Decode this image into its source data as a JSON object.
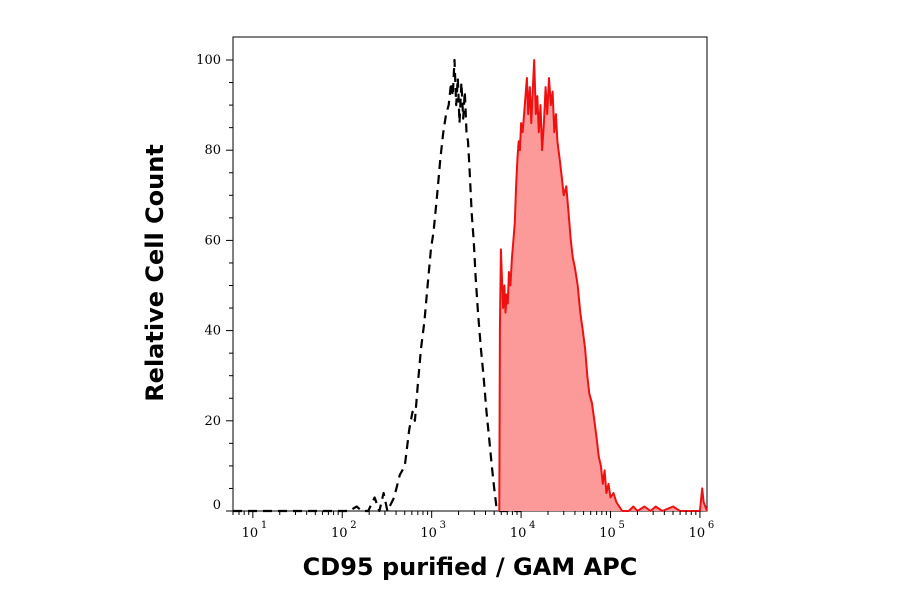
{
  "chart_data": {
    "type": "area",
    "xlabel": "CD95 purified / GAM APC",
    "ylabel": "Relative Cell Count",
    "xscale": "log",
    "xlim": [
      6,
      1200000
    ],
    "ylim": [
      0,
      100
    ],
    "grid": false,
    "legend": "none",
    "x_ticks": [
      {
        "base": "10",
        "exp": "1",
        "value": 10
      },
      {
        "base": "10",
        "exp": "2",
        "value": 100
      },
      {
        "base": "10",
        "exp": "3",
        "value": 1000
      },
      {
        "base": "10",
        "exp": "4",
        "value": 10000
      },
      {
        "base": "10",
        "exp": "5",
        "value": 100000
      },
      {
        "base": "10",
        "exp": "6",
        "value": 1000000
      }
    ],
    "y_ticks": [
      {
        "label": "0",
        "value": 0
      },
      {
        "label": "20",
        "value": 20
      },
      {
        "label": "40",
        "value": 40
      },
      {
        "label": "60",
        "value": 60
      },
      {
        "label": "80",
        "value": 80
      },
      {
        "label": "100",
        "value": 100
      }
    ],
    "series": [
      {
        "style": "dashed",
        "color": "#000000",
        "fill": null,
        "points": [
          [
            6,
            0
          ],
          [
            120,
            0
          ],
          [
            145,
            1
          ],
          [
            165,
            0
          ],
          [
            195,
            0
          ],
          [
            230,
            3
          ],
          [
            260,
            0
          ],
          [
            290,
            4
          ],
          [
            320,
            0
          ],
          [
            380,
            3
          ],
          [
            440,
            8
          ],
          [
            500,
            10
          ],
          [
            560,
            18
          ],
          [
            610,
            22
          ],
          [
            650,
            20
          ],
          [
            700,
            28
          ],
          [
            760,
            36
          ],
          [
            830,
            42
          ],
          [
            900,
            50
          ],
          [
            980,
            58
          ],
          [
            1050,
            62
          ],
          [
            1150,
            70
          ],
          [
            1250,
            78
          ],
          [
            1350,
            84
          ],
          [
            1450,
            88
          ],
          [
            1550,
            90
          ],
          [
            1650,
            95
          ],
          [
            1720,
            92
          ],
          [
            1800,
            100
          ],
          [
            1880,
            90
          ],
          [
            1960,
            96
          ],
          [
            2050,
            86
          ],
          [
            2150,
            95
          ],
          [
            2250,
            87
          ],
          [
            2350,
            93
          ],
          [
            2450,
            84
          ],
          [
            2550,
            82
          ],
          [
            2650,
            76
          ],
          [
            2800,
            66
          ],
          [
            2950,
            60
          ],
          [
            3100,
            52
          ],
          [
            3300,
            44
          ],
          [
            3550,
            36
          ],
          [
            3800,
            30
          ],
          [
            4100,
            22
          ],
          [
            4400,
            16
          ],
          [
            4700,
            10
          ],
          [
            5000,
            5
          ],
          [
            5300,
            1
          ],
          [
            5600,
            0
          ],
          [
            10000,
            0
          ]
        ]
      },
      {
        "style": "solid",
        "color": "#ee1111",
        "fill": "#fc9a9a",
        "points": [
          [
            5700,
            0
          ],
          [
            5800,
            40
          ],
          [
            5950,
            58
          ],
          [
            6100,
            52
          ],
          [
            6300,
            45
          ],
          [
            6500,
            50
          ],
          [
            6700,
            44
          ],
          [
            6900,
            48
          ],
          [
            7100,
            46
          ],
          [
            7300,
            53
          ],
          [
            7600,
            50
          ],
          [
            7900,
            56
          ],
          [
            8200,
            60
          ],
          [
            8500,
            64
          ],
          [
            8800,
            72
          ],
          [
            9100,
            78
          ],
          [
            9400,
            82
          ],
          [
            9700,
            80
          ],
          [
            10000,
            86
          ],
          [
            10400,
            84
          ],
          [
            10800,
            88
          ],
          [
            11200,
            92
          ],
          [
            11600,
            96
          ],
          [
            12000,
            88
          ],
          [
            12500,
            94
          ],
          [
            13000,
            86
          ],
          [
            13500,
            93
          ],
          [
            14000,
            100
          ],
          [
            14600,
            88
          ],
          [
            15200,
            92
          ],
          [
            15800,
            84
          ],
          [
            16500,
            90
          ],
          [
            17200,
            80
          ],
          [
            18000,
            86
          ],
          [
            18800,
            94
          ],
          [
            19600,
            88
          ],
          [
            20500,
            96
          ],
          [
            21500,
            90
          ],
          [
            22500,
            93
          ],
          [
            23500,
            84
          ],
          [
            24500,
            88
          ],
          [
            25500,
            82
          ],
          [
            27000,
            78
          ],
          [
            28500,
            74
          ],
          [
            30000,
            70
          ],
          [
            32000,
            72
          ],
          [
            34000,
            66
          ],
          [
            36000,
            60
          ],
          [
            38000,
            56
          ],
          [
            40000,
            54
          ],
          [
            43000,
            50
          ],
          [
            46000,
            44
          ],
          [
            49000,
            40
          ],
          [
            52000,
            36
          ],
          [
            55000,
            30
          ],
          [
            58000,
            26
          ],
          [
            62000,
            24
          ],
          [
            66000,
            20
          ],
          [
            70000,
            16
          ],
          [
            74000,
            12
          ],
          [
            78000,
            10
          ],
          [
            82000,
            6
          ],
          [
            86000,
            9
          ],
          [
            90000,
            4
          ],
          [
            95000,
            6
          ],
          [
            100000,
            3
          ],
          [
            108000,
            4
          ],
          [
            116000,
            2
          ],
          [
            125000,
            1
          ],
          [
            135000,
            0
          ],
          [
            160000,
            0
          ],
          [
            180000,
            1
          ],
          [
            200000,
            0
          ],
          [
            240000,
            1
          ],
          [
            280000,
            0
          ],
          [
            320000,
            1
          ],
          [
            380000,
            0
          ],
          [
            500000,
            1
          ],
          [
            600000,
            0
          ],
          [
            1000000,
            0
          ],
          [
            1060000,
            5
          ],
          [
            1100000,
            2
          ],
          [
            1200000,
            0
          ]
        ]
      }
    ]
  }
}
